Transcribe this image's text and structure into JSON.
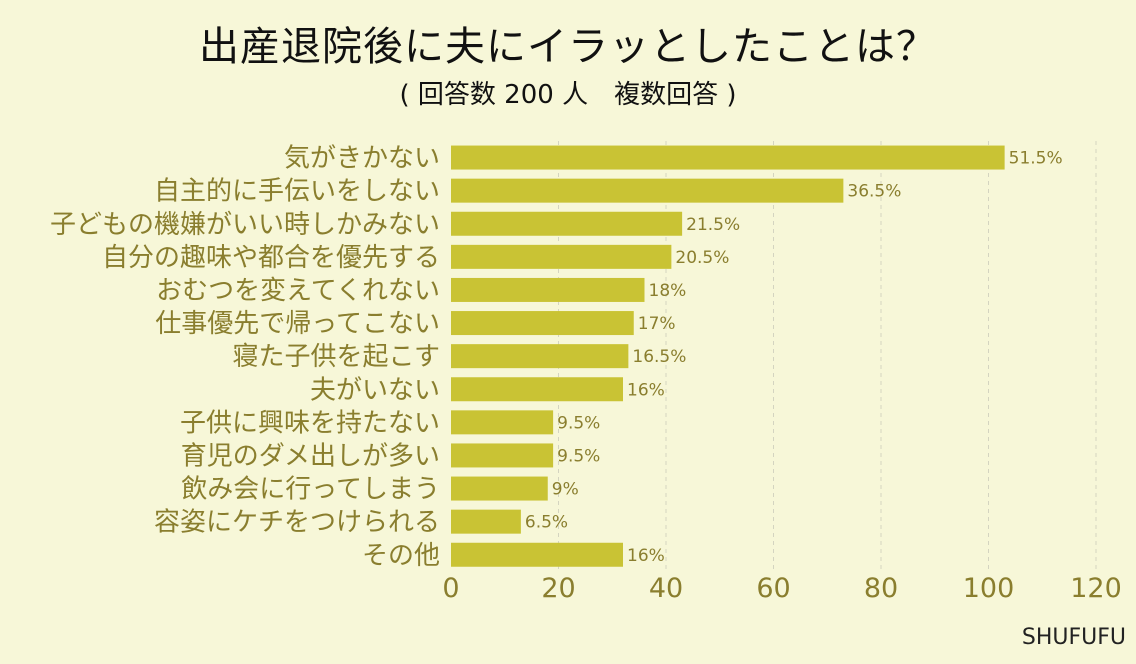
{
  "chart_data": {
    "type": "bar",
    "orientation": "horizontal",
    "title": "出産退院後に夫にイラッとしたことは？",
    "subtitle": "( 回答数 200 人　複数回答 )",
    "categories": [
      "気がきかない",
      "自主的に手伝いをしない",
      "子どもの機嫌がいい時しかみない",
      "自分の趣味や都合を優先する",
      "おむつを変えてくれない",
      "仕事優先で帰ってこない",
      "寝た子供を起こす",
      "夫がいない",
      "子供に興味を持たない",
      "育児のダメ出しが多い",
      "飲み会に行ってしまう",
      "容姿にケチをつけられる",
      "その他"
    ],
    "values": [
      103,
      73,
      43,
      41,
      36,
      34,
      33,
      32,
      19,
      19,
      18,
      13,
      32
    ],
    "value_labels": [
      "51.5%",
      "36.5%",
      "21.5%",
      "20.5%",
      "18%",
      "17%",
      "16.5%",
      "16%",
      "9.5%",
      "9.5%",
      "9%",
      "6.5%",
      "16%"
    ],
    "xlim": [
      0,
      120
    ],
    "xticks": [
      "0",
      "20",
      "40",
      "60",
      "80",
      "100",
      "120"
    ],
    "grid": true,
    "colors": {
      "bar": "#c9c334",
      "text": "#8a7e2e",
      "grid": "#d4d4c0"
    }
  },
  "footer": {
    "brand": "SHUFUFU"
  }
}
